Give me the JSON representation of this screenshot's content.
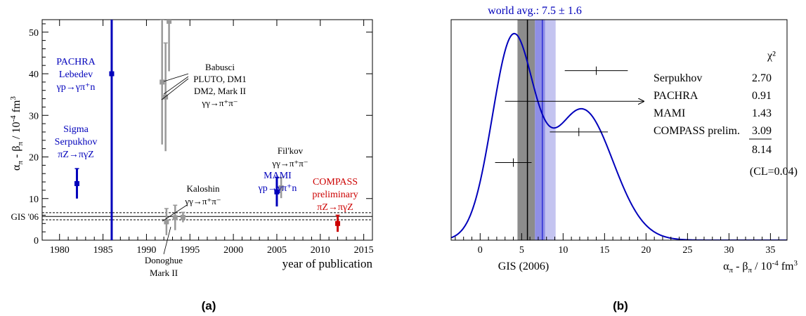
{
  "chart_data": [
    {
      "type": "scatter",
      "panel_label": "(a)",
      "xlabel": "year of publication",
      "ylabel": "α_π - β_π / 10^-4 fm^3",
      "xlim": [
        1978,
        2016
      ],
      "ylim": [
        0,
        53
      ],
      "x_ticks": [
        "1980",
        "1985",
        "1990",
        "1995",
        "2000",
        "2005",
        "2010",
        "2015"
      ],
      "y_ticks": [
        "0",
        "10",
        "20",
        "30",
        "40",
        "50"
      ],
      "band": {
        "label": "GIS '06",
        "center": 5.7,
        "low": 4.9,
        "high": 6.6
      },
      "annotations": {
        "pachra": [
          "PACHRA",
          "Lebedev",
          "γp→γπ⁺n"
        ],
        "sigma": [
          "Sigma",
          "Serpukhov",
          "πZ→πγZ"
        ],
        "babusci": [
          "Babusci",
          "PLUTO, DM1",
          "DM2, Mark II",
          "γγ→π⁺π⁻"
        ],
        "kaloshin": [
          "Kaloshin",
          "γγ→π⁺π⁻"
        ],
        "donoghue": [
          "Donoghue",
          "Mark II"
        ],
        "mami": [
          "MAMI",
          "γp→γπ⁺n"
        ],
        "filkov": [
          "Fil'kov",
          "γγ→π⁺π⁻"
        ],
        "compass": [
          "COMPASS",
          "preliminary",
          "πZ→πγZ"
        ]
      },
      "points": [
        {
          "x": 1982,
          "y": 13.6,
          "err": 3.6,
          "color": "#0000bb"
        },
        {
          "x": 1986,
          "y": 40.0,
          "err": 53,
          "color": "#0000bb"
        },
        {
          "x": 1991.8,
          "y": 38.0,
          "err": 15.0,
          "color": "#999999"
        },
        {
          "x": 1992.2,
          "y": 34.4,
          "err": 13.0,
          "color": "#999999"
        },
        {
          "x": 1992.6,
          "y": 52.6,
          "err": 12.0,
          "color": "#999999"
        },
        {
          "x": 1992.3,
          "y": 4.4,
          "err": 3.2,
          "color": "#999999"
        },
        {
          "x": 1993.3,
          "y": 5.4,
          "err": 3.0,
          "color": "#999999"
        },
        {
          "x": 1994.2,
          "y": 5.5,
          "err": 1.2,
          "color": "#999999"
        },
        {
          "x": 2005,
          "y": 11.6,
          "err": 3.5,
          "color": "#0000bb"
        },
        {
          "x": 2005.5,
          "y": 12.6,
          "err": 2.5,
          "color": "#999999"
        },
        {
          "x": 2012,
          "y": 4.0,
          "err": 2.0,
          "color": "#cc0000"
        }
      ]
    },
    {
      "type": "line",
      "panel_label": "(b)",
      "title": "world avg.: 7.5 ± 1.6",
      "xlabel": "α_π - β_π / 10^-4 fm^3",
      "band_label": "GIS (2006)",
      "xlim": [
        -3.5,
        37
      ],
      "ylim": [
        0,
        1.08
      ],
      "x_ticks": [
        "0",
        "5",
        "10",
        "15",
        "20",
        "25",
        "30",
        "35"
      ],
      "gaussians": [
        {
          "amp": 0.96,
          "mu": 3.9,
          "sigma": 2.5
        },
        {
          "amp": 0.64,
          "mu": 12.3,
          "sigma": 3.7
        }
      ],
      "world_avg": {
        "value": 7.5,
        "err": 1.6
      },
      "gis": {
        "value": 5.7,
        "low": 4.9,
        "high": 6.6
      },
      "chi2": {
        "header": "χ²",
        "rows": [
          {
            "name": "Serpukhov",
            "value": "2.70",
            "x": 14.0,
            "err": 3.8,
            "level": 0.83
          },
          {
            "name": "PACHRA",
            "value": "0.91",
            "x": 40.0,
            "err": 37,
            "level": 0.68
          },
          {
            "name": "MAMI",
            "value": "1.43",
            "x": 11.9,
            "err": 3.5,
            "level": 0.53
          },
          {
            "name": "COMPASS prelim.",
            "value": "3.09",
            "x": 4.0,
            "err": 2.2,
            "level": 0.38
          }
        ],
        "total": "8.14",
        "cl": "(CL=0.04)"
      }
    }
  ]
}
